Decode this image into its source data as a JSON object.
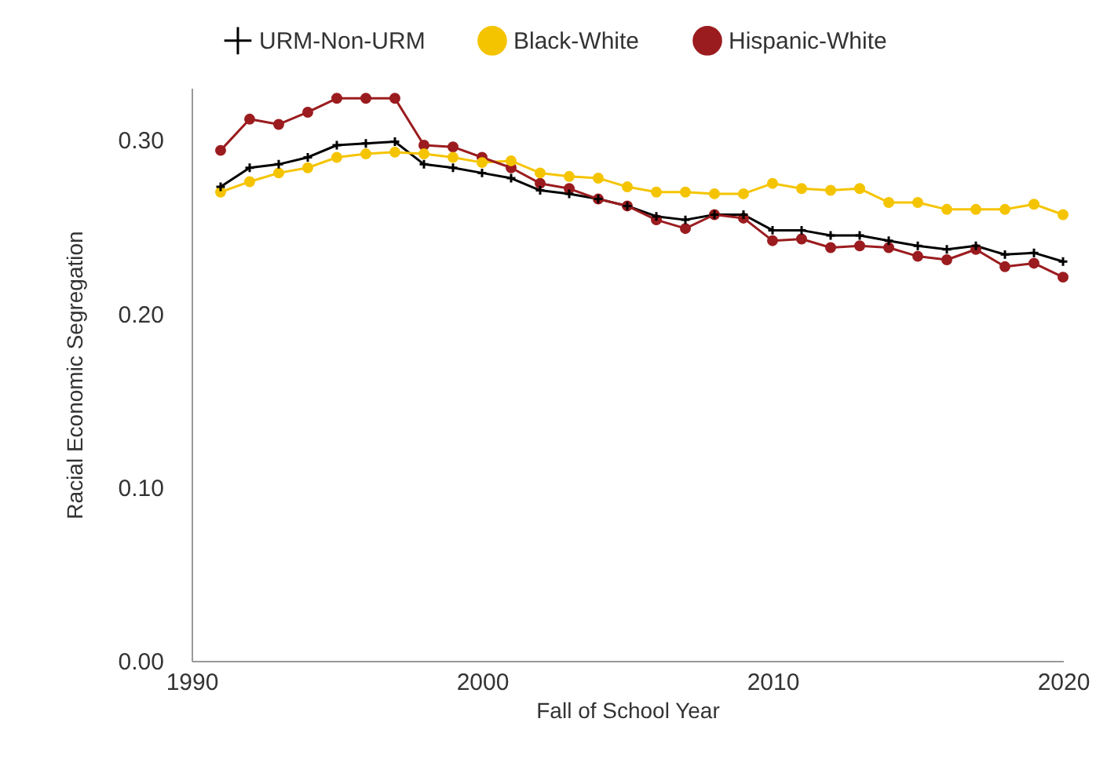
{
  "chart_data": {
    "type": "line",
    "xlabel": "Fall of School Year",
    "ylabel": "Racial Economic Segregation",
    "x": [
      1991,
      1992,
      1993,
      1994,
      1995,
      1996,
      1997,
      1998,
      1999,
      2000,
      2001,
      2002,
      2003,
      2004,
      2005,
      2006,
      2007,
      2008,
      2009,
      2010,
      2011,
      2012,
      2013,
      2014,
      2015,
      2016,
      2017,
      2018,
      2019,
      2020
    ],
    "series": [
      {
        "name": "URM-Non-URM",
        "color": "#000000",
        "marker": "cross",
        "values": [
          0.273,
          0.284,
          0.286,
          0.29,
          0.297,
          0.298,
          0.299,
          0.286,
          0.284,
          0.281,
          0.278,
          0.271,
          0.269,
          0.266,
          0.262,
          0.256,
          0.254,
          0.257,
          0.257,
          0.248,
          0.248,
          0.245,
          0.245,
          0.242,
          0.239,
          0.237,
          0.239,
          0.234,
          0.235,
          0.23
        ]
      },
      {
        "name": "Black-White",
        "color": "#f5c400",
        "marker": "circle",
        "values": [
          0.27,
          0.276,
          0.281,
          0.284,
          0.29,
          0.292,
          0.293,
          0.292,
          0.29,
          0.287,
          0.288,
          0.281,
          0.279,
          0.278,
          0.273,
          0.27,
          0.27,
          0.269,
          0.269,
          0.275,
          0.272,
          0.271,
          0.272,
          0.264,
          0.264,
          0.26,
          0.26,
          0.26,
          0.263,
          0.257
        ]
      },
      {
        "name": "Hispanic-White",
        "color": "#9b1c1f",
        "marker": "circle",
        "values": [
          0.294,
          0.312,
          0.309,
          0.316,
          0.324,
          0.324,
          0.324,
          0.297,
          0.296,
          0.29,
          0.284,
          0.275,
          0.272,
          0.266,
          0.262,
          0.254,
          0.249,
          0.257,
          0.255,
          0.242,
          0.243,
          0.238,
          0.239,
          0.238,
          0.233,
          0.231,
          0.237,
          0.227,
          0.229,
          0.221
        ]
      }
    ],
    "xlim": [
      1990,
      2020
    ],
    "xticks": [
      1990,
      2000,
      2010,
      2020
    ],
    "ylim": [
      0,
      0.33
    ],
    "yticks": [
      {
        "value": 0,
        "label": "0.00"
      },
      {
        "value": 0.1,
        "label": "0.10"
      },
      {
        "value": 0.2,
        "label": "0.20"
      },
      {
        "value": 0.3,
        "label": "0.30"
      }
    ],
    "grid": false,
    "legend": "top",
    "line_style": "solid"
  }
}
